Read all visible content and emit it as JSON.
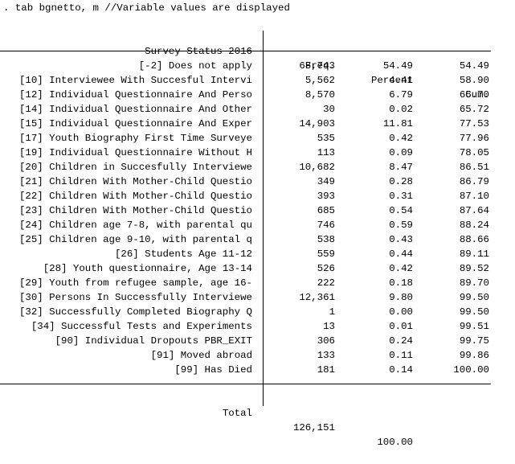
{
  "command": ". tab bgnetto, m //Variable values are displayed",
  "header": {
    "label": "Survey Status 2016",
    "freq": "Freq.",
    "percent": "Percent",
    "cum": "Cum."
  },
  "rows": [
    {
      "label": "[-2] Does not apply",
      "freq": "68,743",
      "percent": "54.49",
      "cum": "54.49"
    },
    {
      "label": "[10] Interviewee With Succesful Intervi",
      "freq": "5,562",
      "percent": "4.41",
      "cum": "58.90"
    },
    {
      "label": "[12] Individual Questionnaire And Perso",
      "freq": "8,570",
      "percent": "6.79",
      "cum": "65.70"
    },
    {
      "label": "[14] Individual Questionnaire And Other",
      "freq": "30",
      "percent": "0.02",
      "cum": "65.72"
    },
    {
      "label": "[15] Individual Questionnaire And Exper",
      "freq": "14,903",
      "percent": "11.81",
      "cum": "77.53"
    },
    {
      "label": "[17] Youth Biography First Time Surveye",
      "freq": "535",
      "percent": "0.42",
      "cum": "77.96"
    },
    {
      "label": "[19] Individual Questionnaire Without H",
      "freq": "113",
      "percent": "0.09",
      "cum": "78.05"
    },
    {
      "label": "[20] Children in Succesfully Interviewe",
      "freq": "10,682",
      "percent": "8.47",
      "cum": "86.51"
    },
    {
      "label": "[21] Children With Mother-Child Questio",
      "freq": "349",
      "percent": "0.28",
      "cum": "86.79"
    },
    {
      "label": "[22] Children With Mother-Child Questio",
      "freq": "393",
      "percent": "0.31",
      "cum": "87.10"
    },
    {
      "label": "[23] Children With Mother-Child Questio",
      "freq": "685",
      "percent": "0.54",
      "cum": "87.64"
    },
    {
      "label": "[24] Children age 7-8, with parental qu",
      "freq": "746",
      "percent": "0.59",
      "cum": "88.24"
    },
    {
      "label": "[25] Children age 9-10, with parental q",
      "freq": "538",
      "percent": "0.43",
      "cum": "88.66"
    },
    {
      "label": "[26] Students Age 11-12",
      "freq": "559",
      "percent": "0.44",
      "cum": "89.11"
    },
    {
      "label": "[28] Youth questionnaire, Age 13-14",
      "freq": "526",
      "percent": "0.42",
      "cum": "89.52"
    },
    {
      "label": "[29] Youth from refugee sample, age 16-",
      "freq": "222",
      "percent": "0.18",
      "cum": "89.70"
    },
    {
      "label": "[30] Persons In Successfully Interviewe",
      "freq": "12,361",
      "percent": "9.80",
      "cum": "99.50"
    },
    {
      "label": "[32] Successfully Completed Biography Q",
      "freq": "1",
      "percent": "0.00",
      "cum": "99.50"
    },
    {
      "label": "[34] Successful Tests and Experiments",
      "freq": "13",
      "percent": "0.01",
      "cum": "99.51"
    },
    {
      "label": "[90] Individual Dropouts PBR_EXIT",
      "freq": "306",
      "percent": "0.24",
      "cum": "99.75"
    },
    {
      "label": "[91] Moved abroad",
      "freq": "133",
      "percent": "0.11",
      "cum": "99.86"
    },
    {
      "label": "[99] Has Died",
      "freq": "181",
      "percent": "0.14",
      "cum": "100.00"
    }
  ],
  "total": {
    "label": "Total",
    "freq": "126,151",
    "percent": "100.00"
  }
}
